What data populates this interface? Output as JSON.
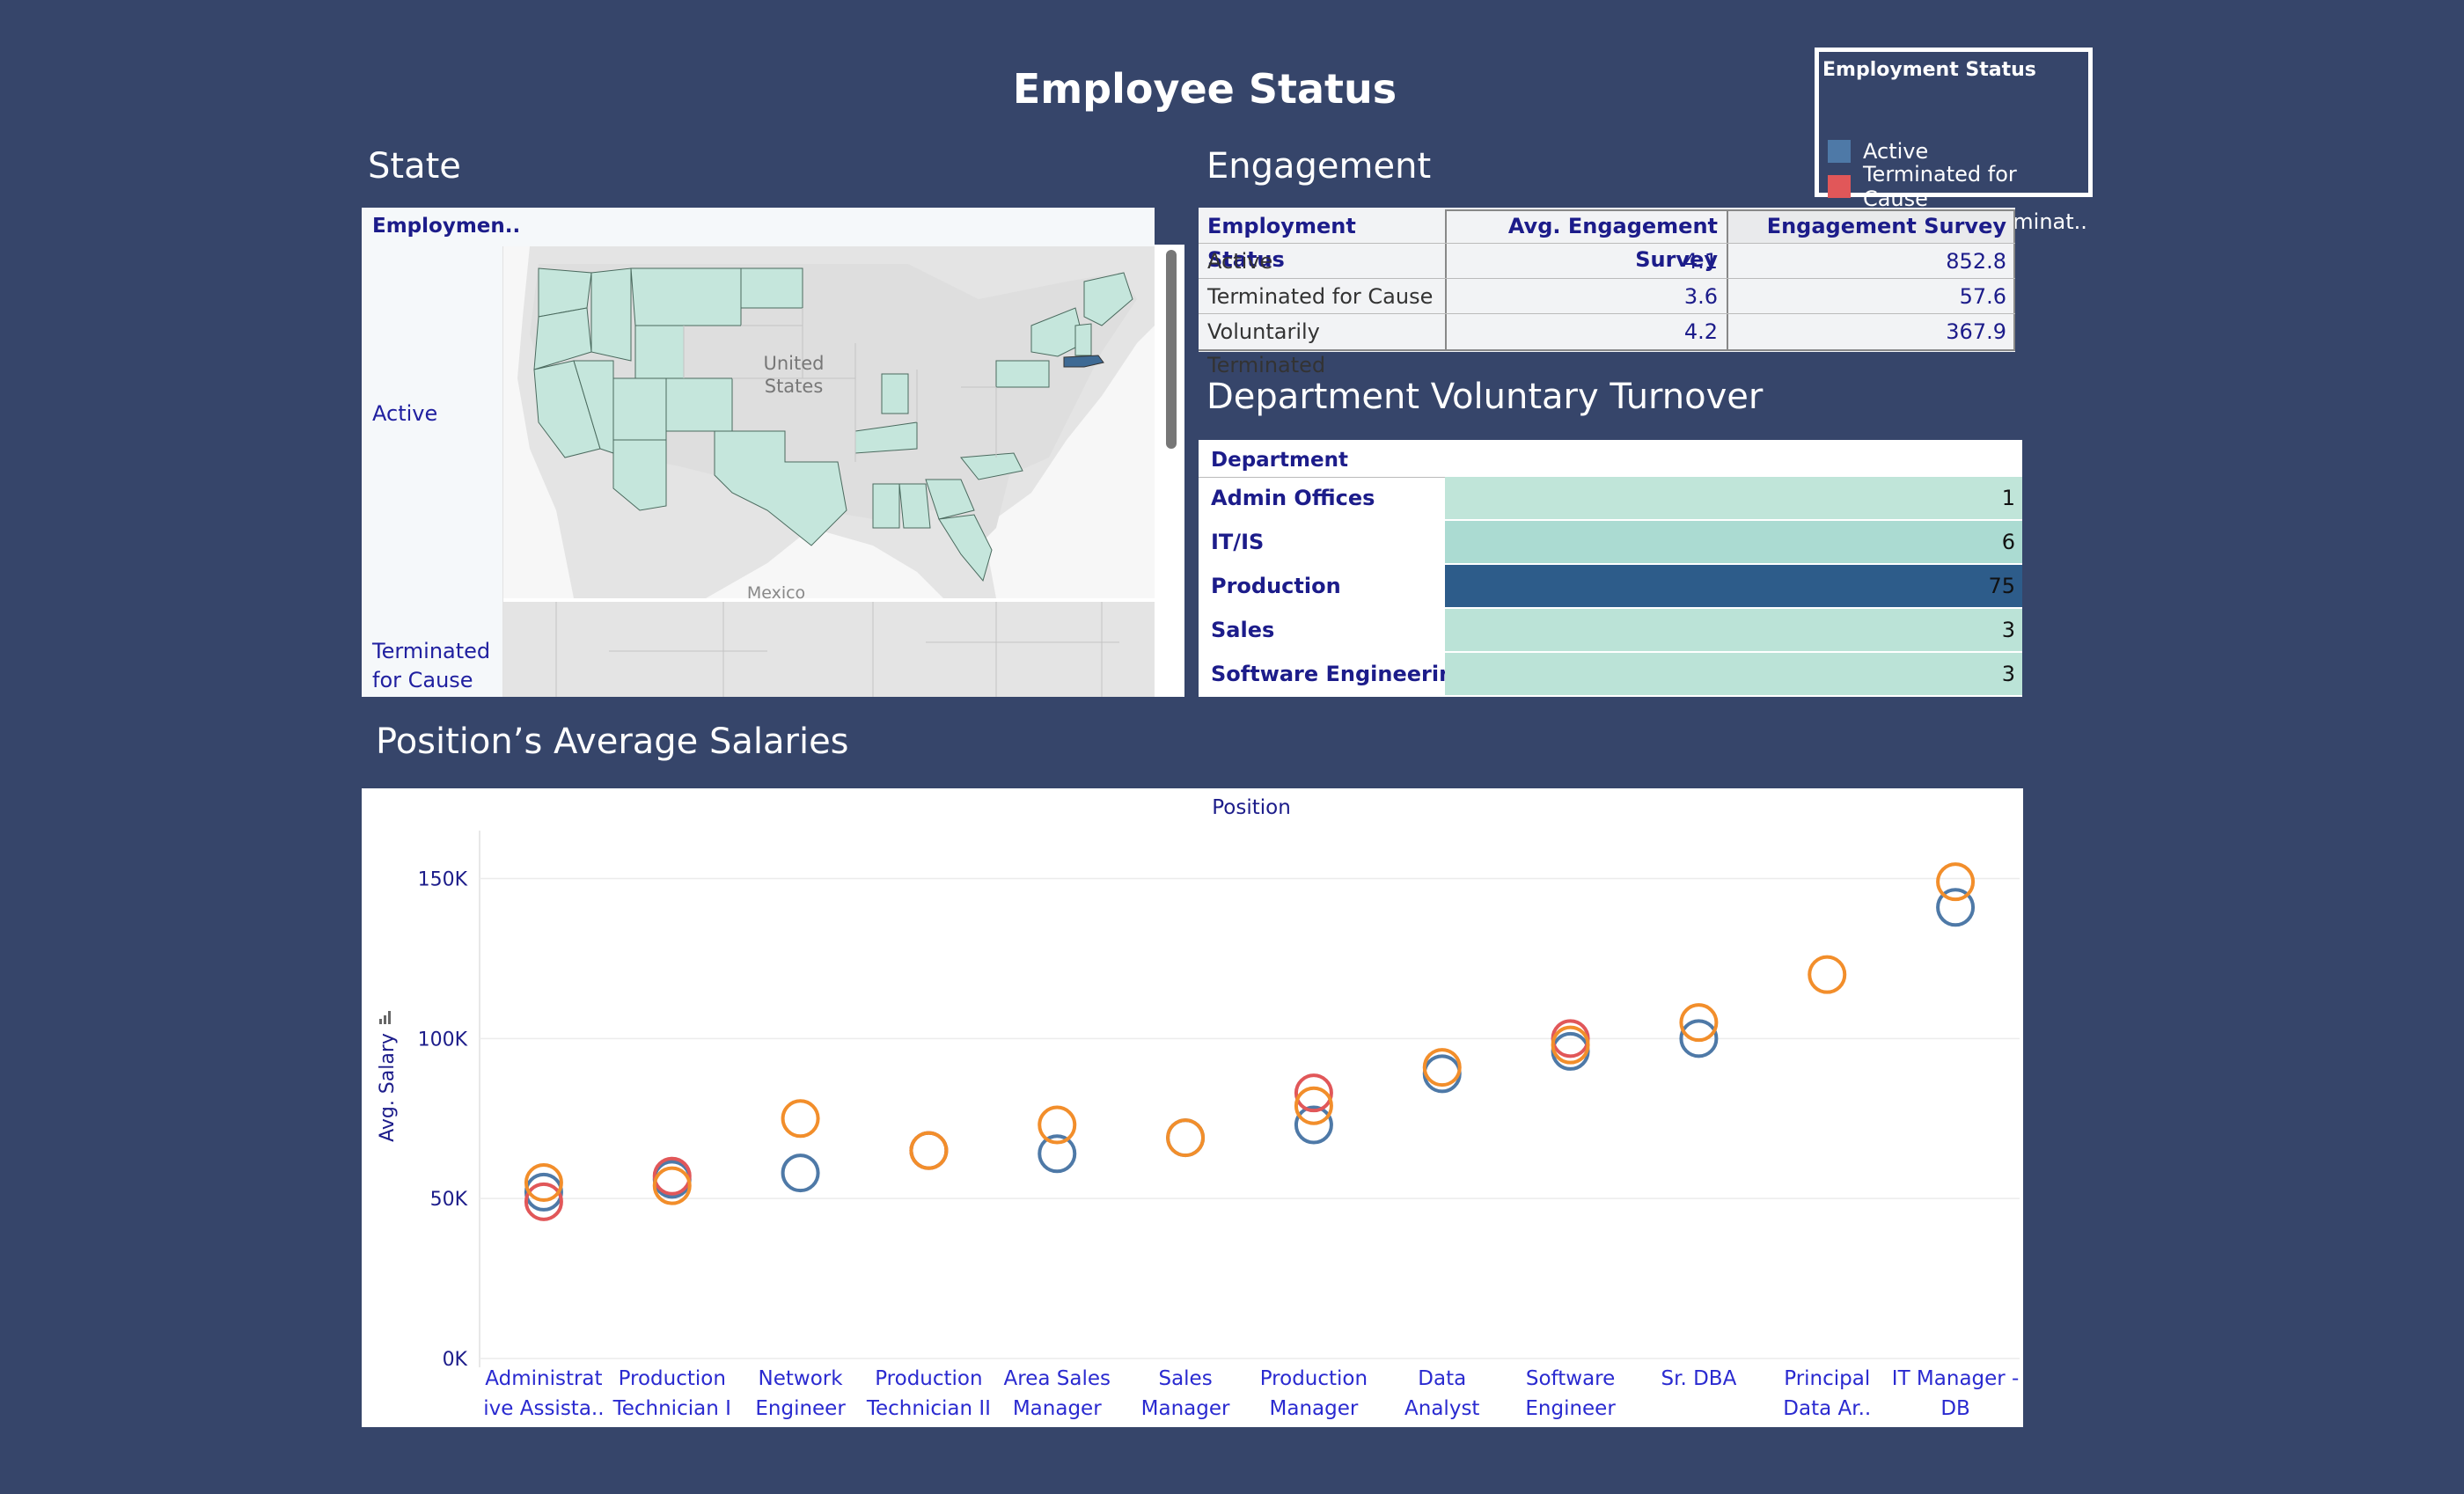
{
  "dashboard": {
    "title": "Employee Status"
  },
  "legend": {
    "title": "Employment Status",
    "items": [
      {
        "label": "Active",
        "color": "#4e79a7"
      },
      {
        "label": "Terminated for Cause",
        "color": "#e15759"
      },
      {
        "label": "Voluntarily Terminat..",
        "color": "#f28e2b"
      }
    ]
  },
  "state_panel": {
    "title": "State",
    "column_header": "Employmen..",
    "rows": [
      "Active",
      "Terminated for Cause"
    ],
    "map_labels": {
      "country": "United States",
      "mexico": "Mexico"
    },
    "colors": {
      "state_fill": "#c5e6dc",
      "highlight": "#3e6a94"
    }
  },
  "engagement": {
    "title": "Engagement",
    "headers": [
      "Employment Status",
      "Avg. Engagement Survey",
      "Engagement Survey"
    ],
    "rows": [
      [
        "Active",
        "4.1",
        "852.8"
      ],
      [
        "Terminated for Cause",
        "3.6",
        "57.6"
      ],
      [
        "Voluntarily Terminated",
        "4.2",
        "367.9"
      ]
    ]
  },
  "department": {
    "title": "Department Voluntary Turnover",
    "header": "Department",
    "rows": [
      {
        "label": "Admin Offices",
        "value": "1",
        "color": "#c0e5d9"
      },
      {
        "label": "IT/IS",
        "value": "6",
        "color": "#abdbd2"
      },
      {
        "label": "Production",
        "value": "75",
        "color": "#2d5c8a"
      },
      {
        "label": "Sales",
        "value": "3",
        "color": "#bbe3d7"
      },
      {
        "label": "Software Engineering",
        "value": "3",
        "color": "#bbe3d7"
      }
    ]
  },
  "chart_data": {
    "type": "scatter",
    "title": "Position’s Average Salaries",
    "column_header": "Position",
    "ylabel": "Avg. Salary",
    "ylim": [
      0,
      165000
    ],
    "yticks": [
      {
        "value": 0,
        "label": "0K"
      },
      {
        "value": 50000,
        "label": "50K"
      },
      {
        "value": 100000,
        "label": "100K"
      },
      {
        "value": 150000,
        "label": "150K"
      }
    ],
    "grid": true,
    "categories": [
      [
        "Administrat",
        "ive Assista.."
      ],
      [
        "Production",
        "Technician I"
      ],
      [
        "Network",
        "Engineer"
      ],
      [
        "Production",
        "Technician II"
      ],
      [
        "Area Sales",
        "Manager"
      ],
      [
        "Sales",
        "Manager"
      ],
      [
        "Production",
        "Manager"
      ],
      [
        "Data",
        "Analyst"
      ],
      [
        "Software",
        "Engineer"
      ],
      [
        "Sr. DBA"
      ],
      [
        "Principal",
        "Data Ar.."
      ],
      [
        "IT Manager -",
        "DB"
      ]
    ],
    "series": [
      {
        "name": "Active",
        "color": "#4e79a7",
        "values": [
          52000,
          56000,
          58000,
          65000,
          64000,
          69000,
          73000,
          89000,
          96000,
          100000,
          null,
          141000
        ]
      },
      {
        "name": "Terminated for Cause",
        "color": "#e15759",
        "values": [
          49000,
          57000,
          null,
          65000,
          null,
          null,
          83000,
          null,
          100000,
          null,
          null,
          null
        ]
      },
      {
        "name": "Voluntarily Terminated",
        "color": "#f28e2b",
        "values": [
          55000,
          54000,
          75000,
          65000,
          73000,
          69000,
          79000,
          91000,
          98000,
          105000,
          120000,
          149000
        ]
      }
    ]
  }
}
